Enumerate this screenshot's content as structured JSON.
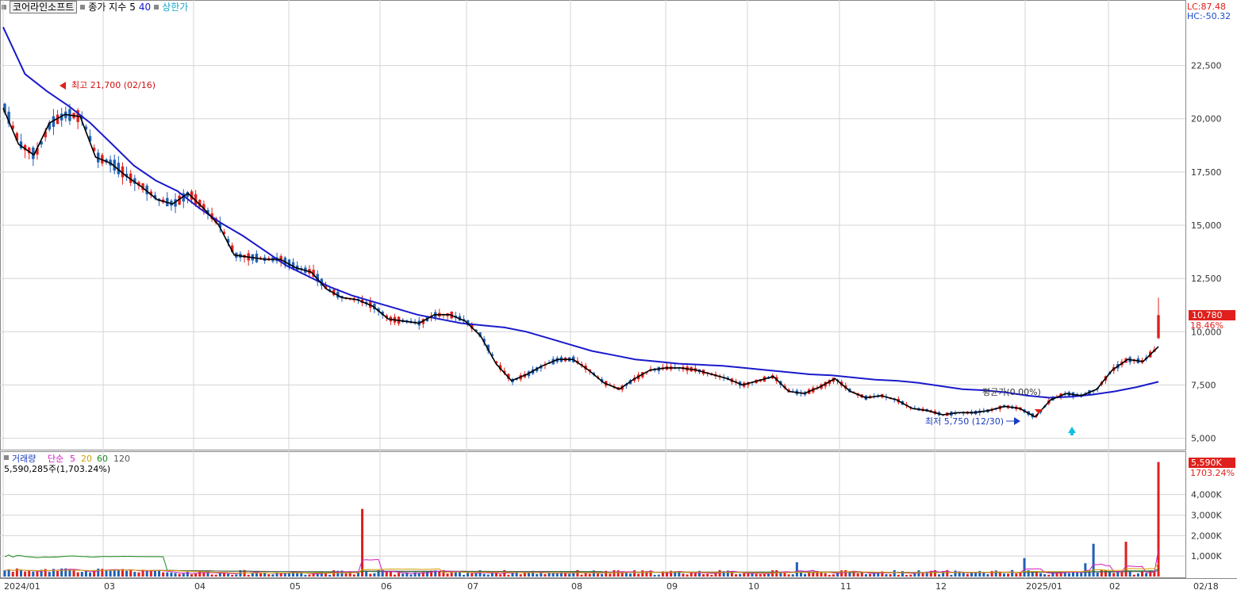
{
  "header": {
    "stock_name": "코어라인소프트",
    "indicator_label": "종가 지수",
    "ma_short": "5",
    "ma_long": "40",
    "limit_label": "상한가",
    "lc": "LC:87.48",
    "hc": "HC:-50.32"
  },
  "annotations": {
    "high": "최고 21,700 (02/16)",
    "low": "최저 5,750 (12/30)",
    "avg": "평균가(0.00%)"
  },
  "price_badge": {
    "value": "10,780",
    "pct": "18.46%"
  },
  "volume_header": {
    "title": "거래량",
    "ma_label": "단순",
    "periods": [
      "5",
      "20",
      "60",
      "120"
    ],
    "current": "5,590,285주(1,703.24%)"
  },
  "volume_badge": {
    "value": "5,590K",
    "pct": "1703.24%"
  },
  "colors": {
    "up": "#e0201c",
    "down": "#1f5fb4",
    "ma_short": "#000000",
    "ma_long": "#1a1acc",
    "grid": "#d4d4d4"
  },
  "chart_data": {
    "type": "candlestick",
    "price_axis": {
      "ticks": [
        "22,500",
        "20,000",
        "17,500",
        "15,000",
        "12,500",
        "10,000",
        "7,500",
        "5,000"
      ],
      "ylim": [
        4500,
        25500
      ]
    },
    "volume_axis": {
      "ticks": [
        "4,000K",
        "3,000K",
        "2,000K",
        "1,000K"
      ],
      "ylim": [
        0,
        6000
      ]
    },
    "x_labels": [
      "2024/01",
      "03",
      "04",
      "05",
      "06",
      "07",
      "08",
      "09",
      "10",
      "11",
      "12",
      "2025/01",
      "02",
      "02/18"
    ],
    "ma_short_series": {
      "name": "5",
      "values": [
        20500,
        18800,
        18300,
        19800,
        20200,
        20100,
        18200,
        17900,
        17300,
        16800,
        16200,
        16000,
        16500,
        15800,
        15000,
        13600,
        13500,
        13400,
        13400,
        13000,
        12800,
        12000,
        11600,
        11500,
        11200,
        10600,
        10500,
        10400,
        10800,
        10800,
        10500,
        9800,
        8500,
        7700,
        8000,
        8400,
        8700,
        8700,
        8200,
        7600,
        7300,
        7800,
        8200,
        8300,
        8300,
        8200,
        8000,
        7800,
        7500,
        7700,
        7900,
        7200,
        7100,
        7400,
        7800,
        7200,
        6900,
        7000,
        6800,
        6400,
        6300,
        6100,
        6200,
        6200,
        6300,
        6500,
        6400,
        6000,
        6800,
        7100,
        7000,
        7300,
        8200,
        8700,
        8600,
        9300
      ]
    },
    "ma_long_series": {
      "name": "40",
      "values": [
        24300,
        22100,
        21300,
        20600,
        19800,
        18800,
        17800,
        17100,
        16600,
        15800,
        15100,
        14500,
        13800,
        13100,
        12600,
        12100,
        11700,
        11400,
        11100,
        10800,
        10600,
        10400,
        10300,
        10200,
        10000,
        9700,
        9400,
        9100,
        8900,
        8700,
        8600,
        8500,
        8450,
        8400,
        8300,
        8200,
        8100,
        8000,
        7950,
        7850,
        7750,
        7700,
        7600,
        7450,
        7300,
        7250,
        7150,
        7000,
        6900,
        6950,
        7050,
        7200,
        7400,
        7650
      ]
    },
    "price_min": {
      "label": "최저",
      "value": 5750,
      "date": "12/30"
    },
    "price_max": {
      "label": "최고",
      "value": 21700,
      "date": "02/16"
    },
    "last_close": 10780,
    "last_volume_k": 5590
  }
}
